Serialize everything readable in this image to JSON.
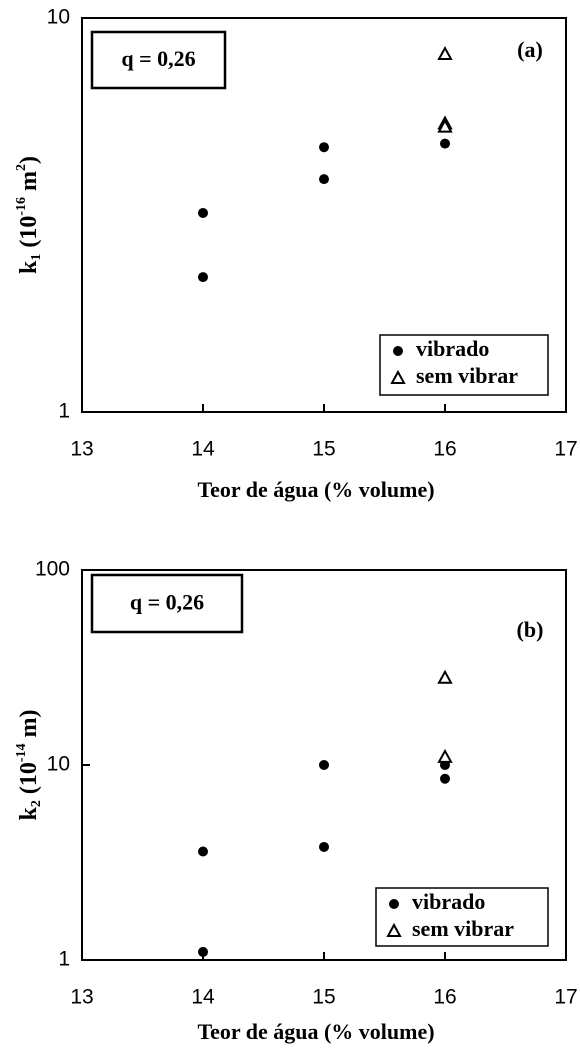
{
  "chart_data": [
    {
      "type": "scatter",
      "annotation": "q = 0,26",
      "panel_label": "(a)",
      "y_label": [
        {
          "text": "k",
          "script": "base"
        },
        {
          "text": "1",
          "script": "sub"
        },
        {
          "text": " (10",
          "script": "base"
        },
        {
          "text": "-16",
          "script": "sup"
        },
        {
          "text": " m",
          "script": "base"
        },
        {
          "text": "2",
          "script": "sup"
        },
        {
          "text": ")",
          "script": "base"
        }
      ],
      "x_label": "Teor de água (% volume)",
      "xlim": [
        13,
        17
      ],
      "xticks": [
        13,
        14,
        15,
        16,
        17
      ],
      "ylim": [
        1,
        10
      ],
      "yticks": [
        1,
        10
      ],
      "log_y": true,
      "legend": "lower right",
      "series": [
        {
          "name": "vibrado",
          "color": "#000000",
          "marker": "circle",
          "x": [
            14,
            14,
            15,
            15,
            16
          ],
          "values": [
            3.2,
            2.2,
            4.7,
            3.9,
            4.8
          ]
        },
        {
          "name": "sem vibrar",
          "color": "#000000",
          "marker": "triangle",
          "x": [
            16,
            16,
            16
          ],
          "values": [
            8.1,
            5.4,
            5.3
          ]
        }
      ]
    },
    {
      "type": "scatter",
      "annotation": "q = 0,26",
      "panel_label": "(b)",
      "y_label": [
        {
          "text": "k",
          "script": "base"
        },
        {
          "text": "2",
          "script": "sub"
        },
        {
          "text": " (10",
          "script": "base"
        },
        {
          "text": "-14",
          "script": "sup"
        },
        {
          "text": " m)",
          "script": "base"
        }
      ],
      "x_label": "Teor de água (% volume)",
      "xlim": [
        13,
        17
      ],
      "xticks": [
        13,
        14,
        15,
        16,
        17
      ],
      "ylim": [
        1,
        100
      ],
      "yticks": [
        1,
        10,
        100
      ],
      "log_y": true,
      "legend": "lower right",
      "series": [
        {
          "name": "vibrado",
          "color": "#000000",
          "marker": "circle",
          "x": [
            14,
            14,
            15,
            15,
            16,
            16
          ],
          "values": [
            3.6,
            1.1,
            10,
            3.8,
            10,
            8.5
          ]
        },
        {
          "name": "sem vibrar",
          "color": "#000000",
          "marker": "triangle",
          "x": [
            16,
            16
          ],
          "values": [
            28,
            11
          ]
        }
      ]
    }
  ]
}
